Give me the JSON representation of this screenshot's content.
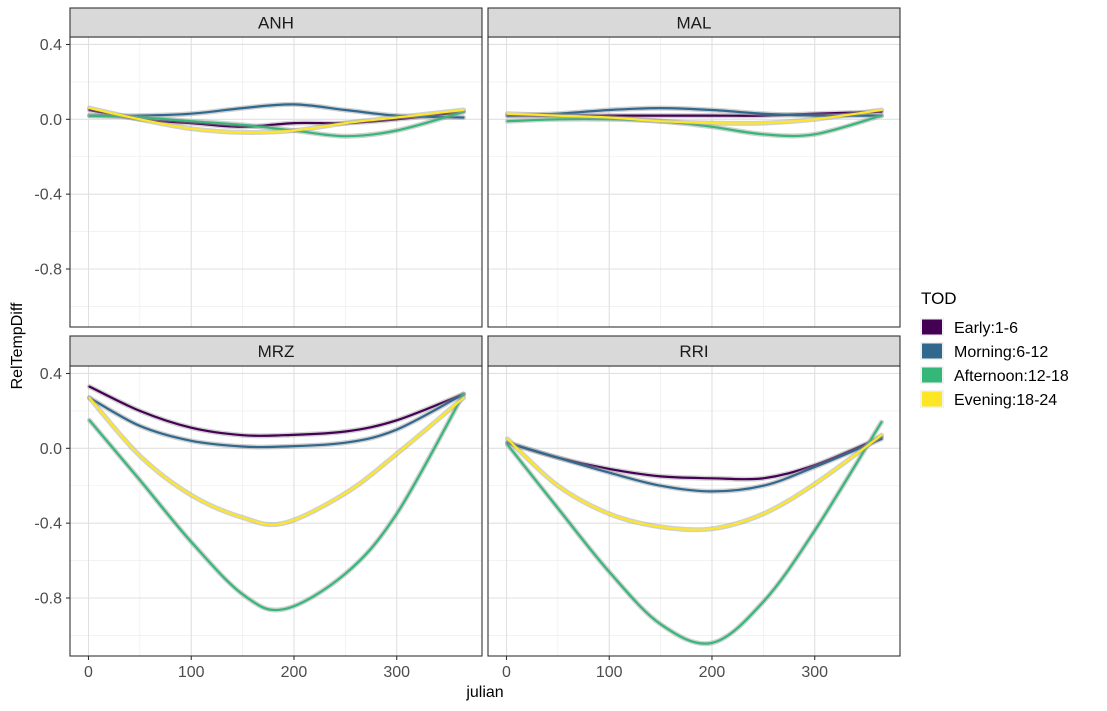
{
  "chart_data": {
    "type": "line",
    "xlabel": "julian",
    "ylabel": "RelTempDiff",
    "x_ticks": [
      0,
      100,
      200,
      300
    ],
    "y_ticks": [
      -0.8,
      -0.4,
      0.0,
      0.4
    ],
    "y_tick_labels": [
      "-0.8",
      "-0.4",
      "0.0",
      "0.4"
    ],
    "xlim": [
      -18,
      383
    ],
    "ylim": [
      -1.11,
      0.44
    ],
    "grid": true,
    "legend": {
      "title": "TOD",
      "position": "right",
      "entries": [
        {
          "label": "Early:1-6",
          "color": "#440154"
        },
        {
          "label": "Morning:6-12",
          "color": "#31688E"
        },
        {
          "label": "Afternoon:12-18",
          "color": "#35B779"
        },
        {
          "label": "Evening:18-24",
          "color": "#FDE725"
        }
      ]
    },
    "panels": [
      {
        "name": "ANH",
        "x": [
          1,
          50,
          100,
          150,
          200,
          250,
          300,
          365
        ],
        "series": [
          {
            "tod": "Early:1-6",
            "values": [
              0.05,
              0.0,
              -0.02,
              -0.04,
              -0.02,
              -0.02,
              0.0,
              0.04
            ]
          },
          {
            "tod": "Morning:6-12",
            "values": [
              0.02,
              0.02,
              0.03,
              0.06,
              0.08,
              0.05,
              0.02,
              0.01
            ]
          },
          {
            "tod": "Afternoon:12-18",
            "values": [
              0.02,
              0.01,
              -0.01,
              -0.03,
              -0.06,
              -0.09,
              -0.06,
              0.04
            ]
          },
          {
            "tod": "Evening:18-24",
            "values": [
              0.06,
              0.0,
              -0.05,
              -0.07,
              -0.06,
              -0.02,
              0.01,
              0.05
            ]
          }
        ]
      },
      {
        "name": "MAL",
        "x": [
          1,
          50,
          100,
          150,
          200,
          250,
          300,
          365
        ],
        "series": [
          {
            "tod": "Early:1-6",
            "values": [
              0.02,
              0.02,
              0.02,
              0.02,
              0.02,
              0.02,
              0.03,
              0.04
            ]
          },
          {
            "tod": "Morning:6-12",
            "values": [
              0.02,
              0.03,
              0.05,
              0.06,
              0.05,
              0.03,
              0.02,
              0.02
            ]
          },
          {
            "tod": "Afternoon:12-18",
            "values": [
              -0.01,
              0.0,
              0.0,
              -0.01,
              -0.04,
              -0.08,
              -0.08,
              0.02
            ]
          },
          {
            "tod": "Evening:18-24",
            "values": [
              0.03,
              0.02,
              0.01,
              -0.01,
              -0.02,
              -0.02,
              0.0,
              0.05
            ]
          }
        ]
      },
      {
        "name": "MRZ",
        "x": [
          1,
          50,
          100,
          150,
          190,
          250,
          300,
          365
        ],
        "series": [
          {
            "tod": "Early:1-6",
            "values": [
              0.33,
              0.2,
              0.11,
              0.07,
              0.07,
              0.09,
              0.15,
              0.29
            ]
          },
          {
            "tod": "Morning:6-12",
            "values": [
              0.27,
              0.12,
              0.04,
              0.01,
              0.01,
              0.03,
              0.1,
              0.29
            ]
          },
          {
            "tod": "Afternoon:12-18",
            "values": [
              0.15,
              -0.17,
              -0.5,
              -0.78,
              -0.86,
              -0.67,
              -0.35,
              0.29
            ]
          },
          {
            "tod": "Evening:18-24",
            "values": [
              0.27,
              -0.04,
              -0.25,
              -0.37,
              -0.4,
              -0.24,
              -0.03,
              0.27
            ]
          }
        ]
      },
      {
        "name": "RRI",
        "x": [
          1,
          50,
          100,
          150,
          200,
          250,
          300,
          365
        ],
        "series": [
          {
            "tod": "Early:1-6",
            "values": [
              0.03,
              -0.05,
              -0.11,
              -0.15,
              -0.16,
              -0.16,
              -0.09,
              0.06
            ]
          },
          {
            "tod": "Morning:6-12",
            "values": [
              0.03,
              -0.05,
              -0.13,
              -0.2,
              -0.23,
              -0.2,
              -0.1,
              0.05
            ]
          },
          {
            "tod": "Afternoon:12-18",
            "values": [
              0.02,
              -0.32,
              -0.66,
              -0.94,
              -1.04,
              -0.82,
              -0.44,
              0.14
            ]
          },
          {
            "tod": "Evening:18-24",
            "values": [
              0.05,
              -0.2,
              -0.35,
              -0.42,
              -0.43,
              -0.35,
              -0.19,
              0.07
            ]
          }
        ]
      }
    ]
  }
}
